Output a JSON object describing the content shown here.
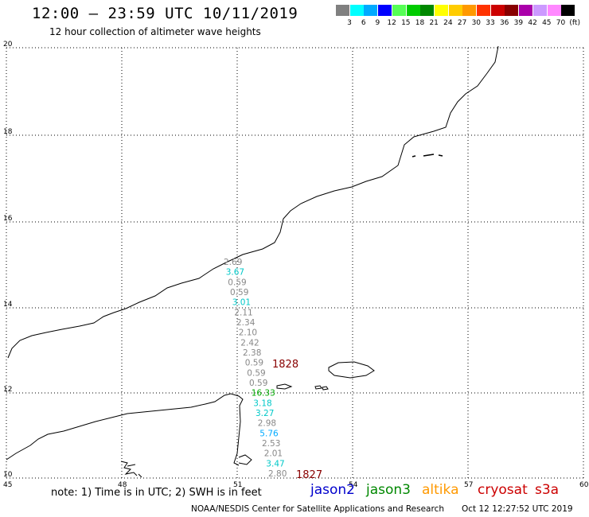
{
  "header": {
    "title": "12:00 — 23:59 UTC 10/11/2019",
    "subtitle": "12 hour collection of altimeter wave heights"
  },
  "colorbar": {
    "colors": [
      "#808080",
      "#00ffff",
      "#00aaff",
      "#0000ff",
      "#55ff55",
      "#00cc00",
      "#008800",
      "#ffff00",
      "#ffcc00",
      "#ff9900",
      "#ff3300",
      "#cc0000",
      "#880000",
      "#aa00aa",
      "#cc99ff",
      "#ff88ff",
      "#000000"
    ],
    "labels": [
      "3",
      "6",
      "9",
      "12",
      "15",
      "18",
      "21",
      "24",
      "27",
      "30",
      "33",
      "36",
      "39",
      "42",
      "45",
      "70",
      "(ft)"
    ]
  },
  "axes": {
    "lon_labels": [
      "45",
      "48",
      "51",
      "54",
      "57",
      "60"
    ],
    "lat_labels": [
      "20",
      "18",
      "16",
      "14",
      "12",
      "10"
    ]
  },
  "track": [
    {
      "text": "2.69",
      "color": "#888888"
    },
    {
      "text": "3.67",
      "color": "#00c8c8"
    },
    {
      "text": "0.59",
      "color": "#888888"
    },
    {
      "text": "0.59",
      "color": "#888888"
    },
    {
      "text": "3.01",
      "color": "#00c8c8"
    },
    {
      "text": "2.11",
      "color": "#888888"
    },
    {
      "text": "2.34",
      "color": "#888888"
    },
    {
      "text": "2.10",
      "color": "#888888"
    },
    {
      "text": "2.42",
      "color": "#888888"
    },
    {
      "text": "2.38",
      "color": "#888888"
    },
    {
      "text": "0.59",
      "color": "#888888"
    },
    {
      "text": "0.59",
      "color": "#888888"
    },
    {
      "text": "0.59",
      "color": "#888888"
    },
    {
      "text": "16.33",
      "color": "#00aa00"
    },
    {
      "text": "3.18",
      "color": "#00c8c8"
    },
    {
      "text": "3.27",
      "color": "#00c8c8"
    },
    {
      "text": "2.98",
      "color": "#888888"
    },
    {
      "text": "5.76",
      "color": "#00aaff"
    },
    {
      "text": "2.53",
      "color": "#888888"
    },
    {
      "text": "2.01",
      "color": "#888888"
    },
    {
      "text": "3.47",
      "color": "#00c8c8"
    },
    {
      "text": "2.80",
      "color": "#888888"
    }
  ],
  "pass_labels": [
    {
      "text": "1828",
      "color": "#880000"
    },
    {
      "text": "1827",
      "color": "#880000"
    }
  ],
  "footer": {
    "note": "note: 1) Time is in UTC; 2) SWH is in feet",
    "satellites": [
      {
        "text": "jason2",
        "color": "#0000cc"
      },
      {
        "text": "jason3",
        "color": "#008800"
      },
      {
        "text": "altika",
        "color": "#ff9900"
      },
      {
        "text": "cryosat",
        "color": "#cc0000"
      },
      {
        "text": "s3a",
        "color": "#cc0000"
      }
    ],
    "credit": "NOAA/NESDIS Center for Satellite Applications and Research",
    "timestamp": "Oct 12 12:27:52 UTC 2019"
  }
}
